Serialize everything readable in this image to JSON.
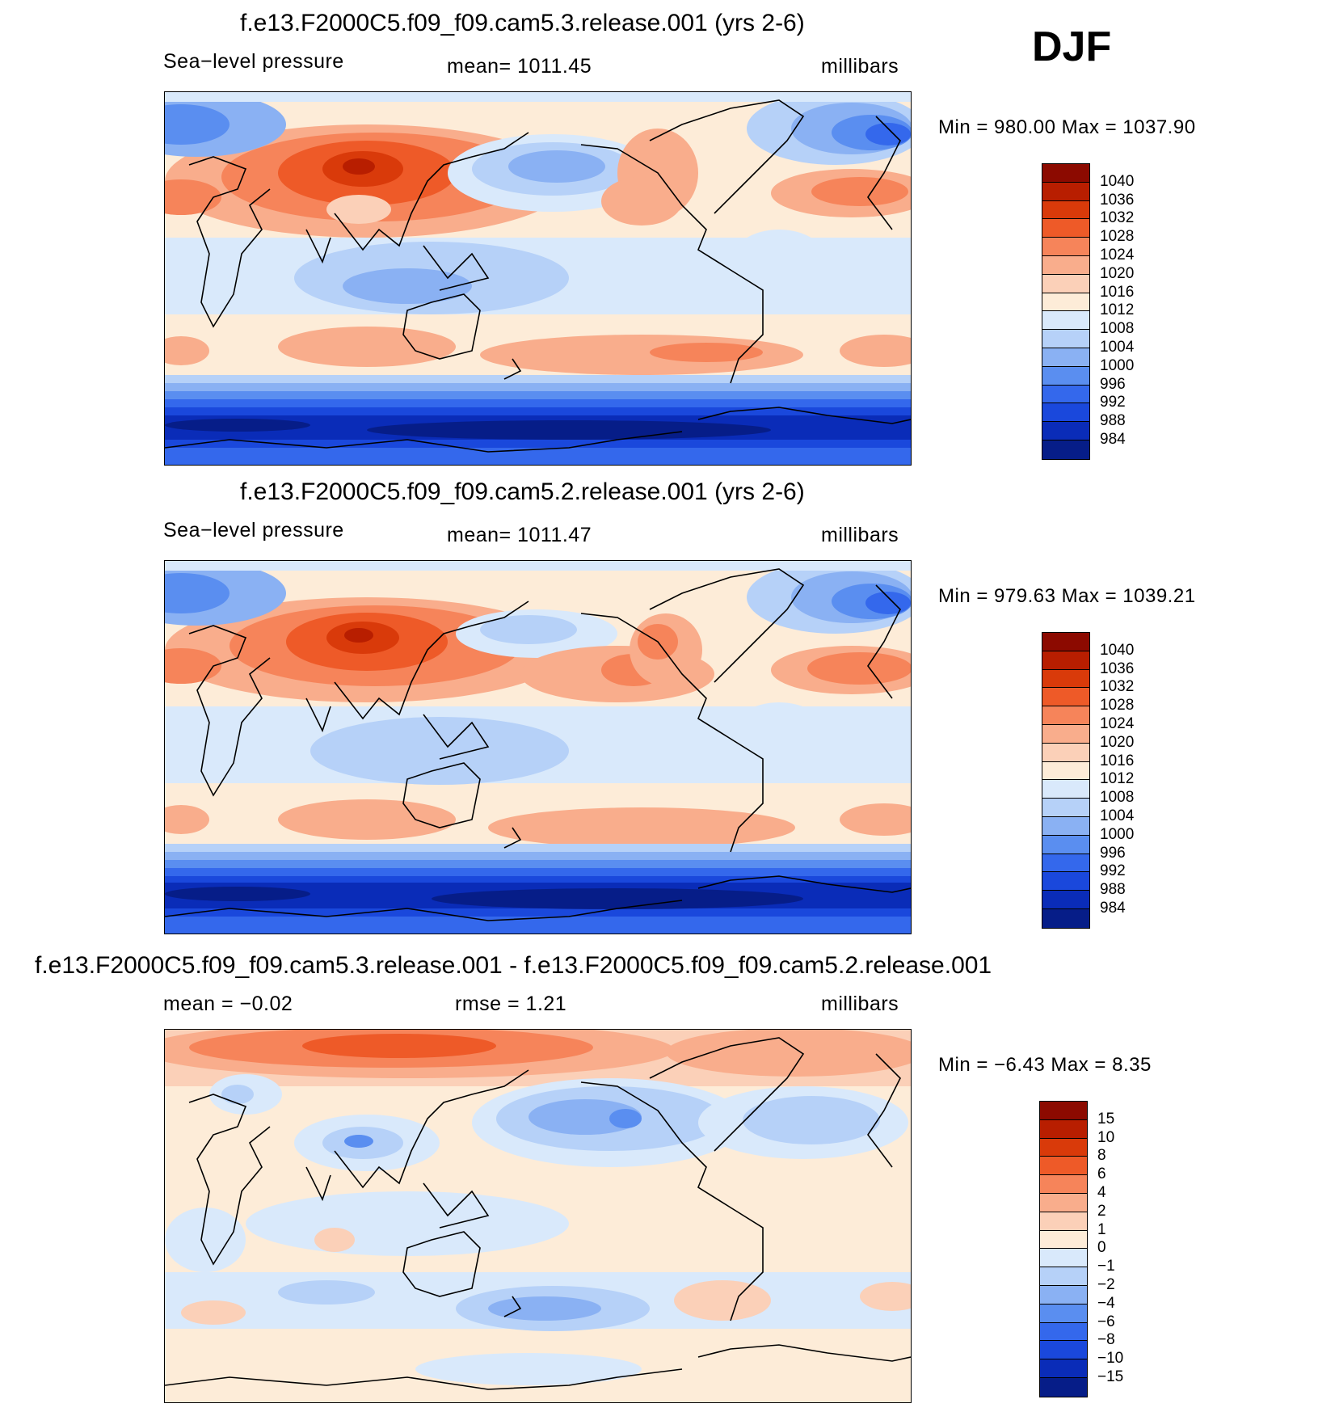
{
  "season": "DJF",
  "panels": [
    {
      "title": "f.e13.F2000C5.f09_f09.cam5.3.release.001 (yrs 2-6)",
      "left_label": "Sea−level pressure",
      "center_label": "mean=  1011.45",
      "right_label": "millibars",
      "minmax": "Min  =  980.00  Max  =  1037.90",
      "colorbar_labels": [
        "1040",
        "1036",
        "1032",
        "1028",
        "1024",
        "1020",
        "1016",
        "1012",
        "1008",
        "1004",
        "1000",
        "996",
        "992",
        "988",
        "984"
      ],
      "colorbar_colors": [
        "#8c0a00",
        "#b81e00",
        "#d93a0a",
        "#ee5a28",
        "#f6845a",
        "#f9ad8c",
        "#fbd0b8",
        "#fdecd8",
        "#d9e9fb",
        "#b6d1f8",
        "#8ab1f3",
        "#5a8ef0",
        "#3468ec",
        "#1a48dc",
        "#0a2cb8",
        "#061d88"
      ]
    },
    {
      "title": "f.e13.F2000C5.f09_f09.cam5.2.release.001 (yrs 2-6)",
      "left_label": "Sea−level pressure",
      "center_label": "mean=  1011.47",
      "right_label": "millibars",
      "minmax": "Min  =  979.63  Max  =  1039.21",
      "colorbar_labels": [
        "1040",
        "1036",
        "1032",
        "1028",
        "1024",
        "1020",
        "1016",
        "1012",
        "1008",
        "1004",
        "1000",
        "996",
        "992",
        "988",
        "984"
      ],
      "colorbar_colors": [
        "#8c0a00",
        "#b81e00",
        "#d93a0a",
        "#ee5a28",
        "#f6845a",
        "#f9ad8c",
        "#fbd0b8",
        "#fdecd8",
        "#d9e9fb",
        "#b6d1f8",
        "#8ab1f3",
        "#5a8ef0",
        "#3468ec",
        "#1a48dc",
        "#0a2cb8",
        "#061d88"
      ]
    },
    {
      "title": "f.e13.F2000C5.f09_f09.cam5.3.release.001 - f.e13.F2000C5.f09_f09.cam5.2.release.001",
      "left_label": "mean  =   −0.02",
      "center_label": "rmse  =      1.21",
      "right_label": "millibars",
      "minmax": "Min  =    −6.43  Max  =      8.35",
      "colorbar_labels": [
        "15",
        "10",
        "8",
        "6",
        "4",
        "2",
        "1",
        "0",
        "−1",
        "−2",
        "−4",
        "−6",
        "−8",
        "−10",
        "−15"
      ],
      "colorbar_colors": [
        "#8c0a00",
        "#b81e00",
        "#d93a0a",
        "#ee5a28",
        "#f6845a",
        "#f9ad8c",
        "#fbd0b8",
        "#fdecd8",
        "#d9e9fb",
        "#b6d1f8",
        "#8ab1f3",
        "#5a8ef0",
        "#3468ec",
        "#1a48dc",
        "#0a2cb8",
        "#061d88"
      ]
    }
  ]
}
